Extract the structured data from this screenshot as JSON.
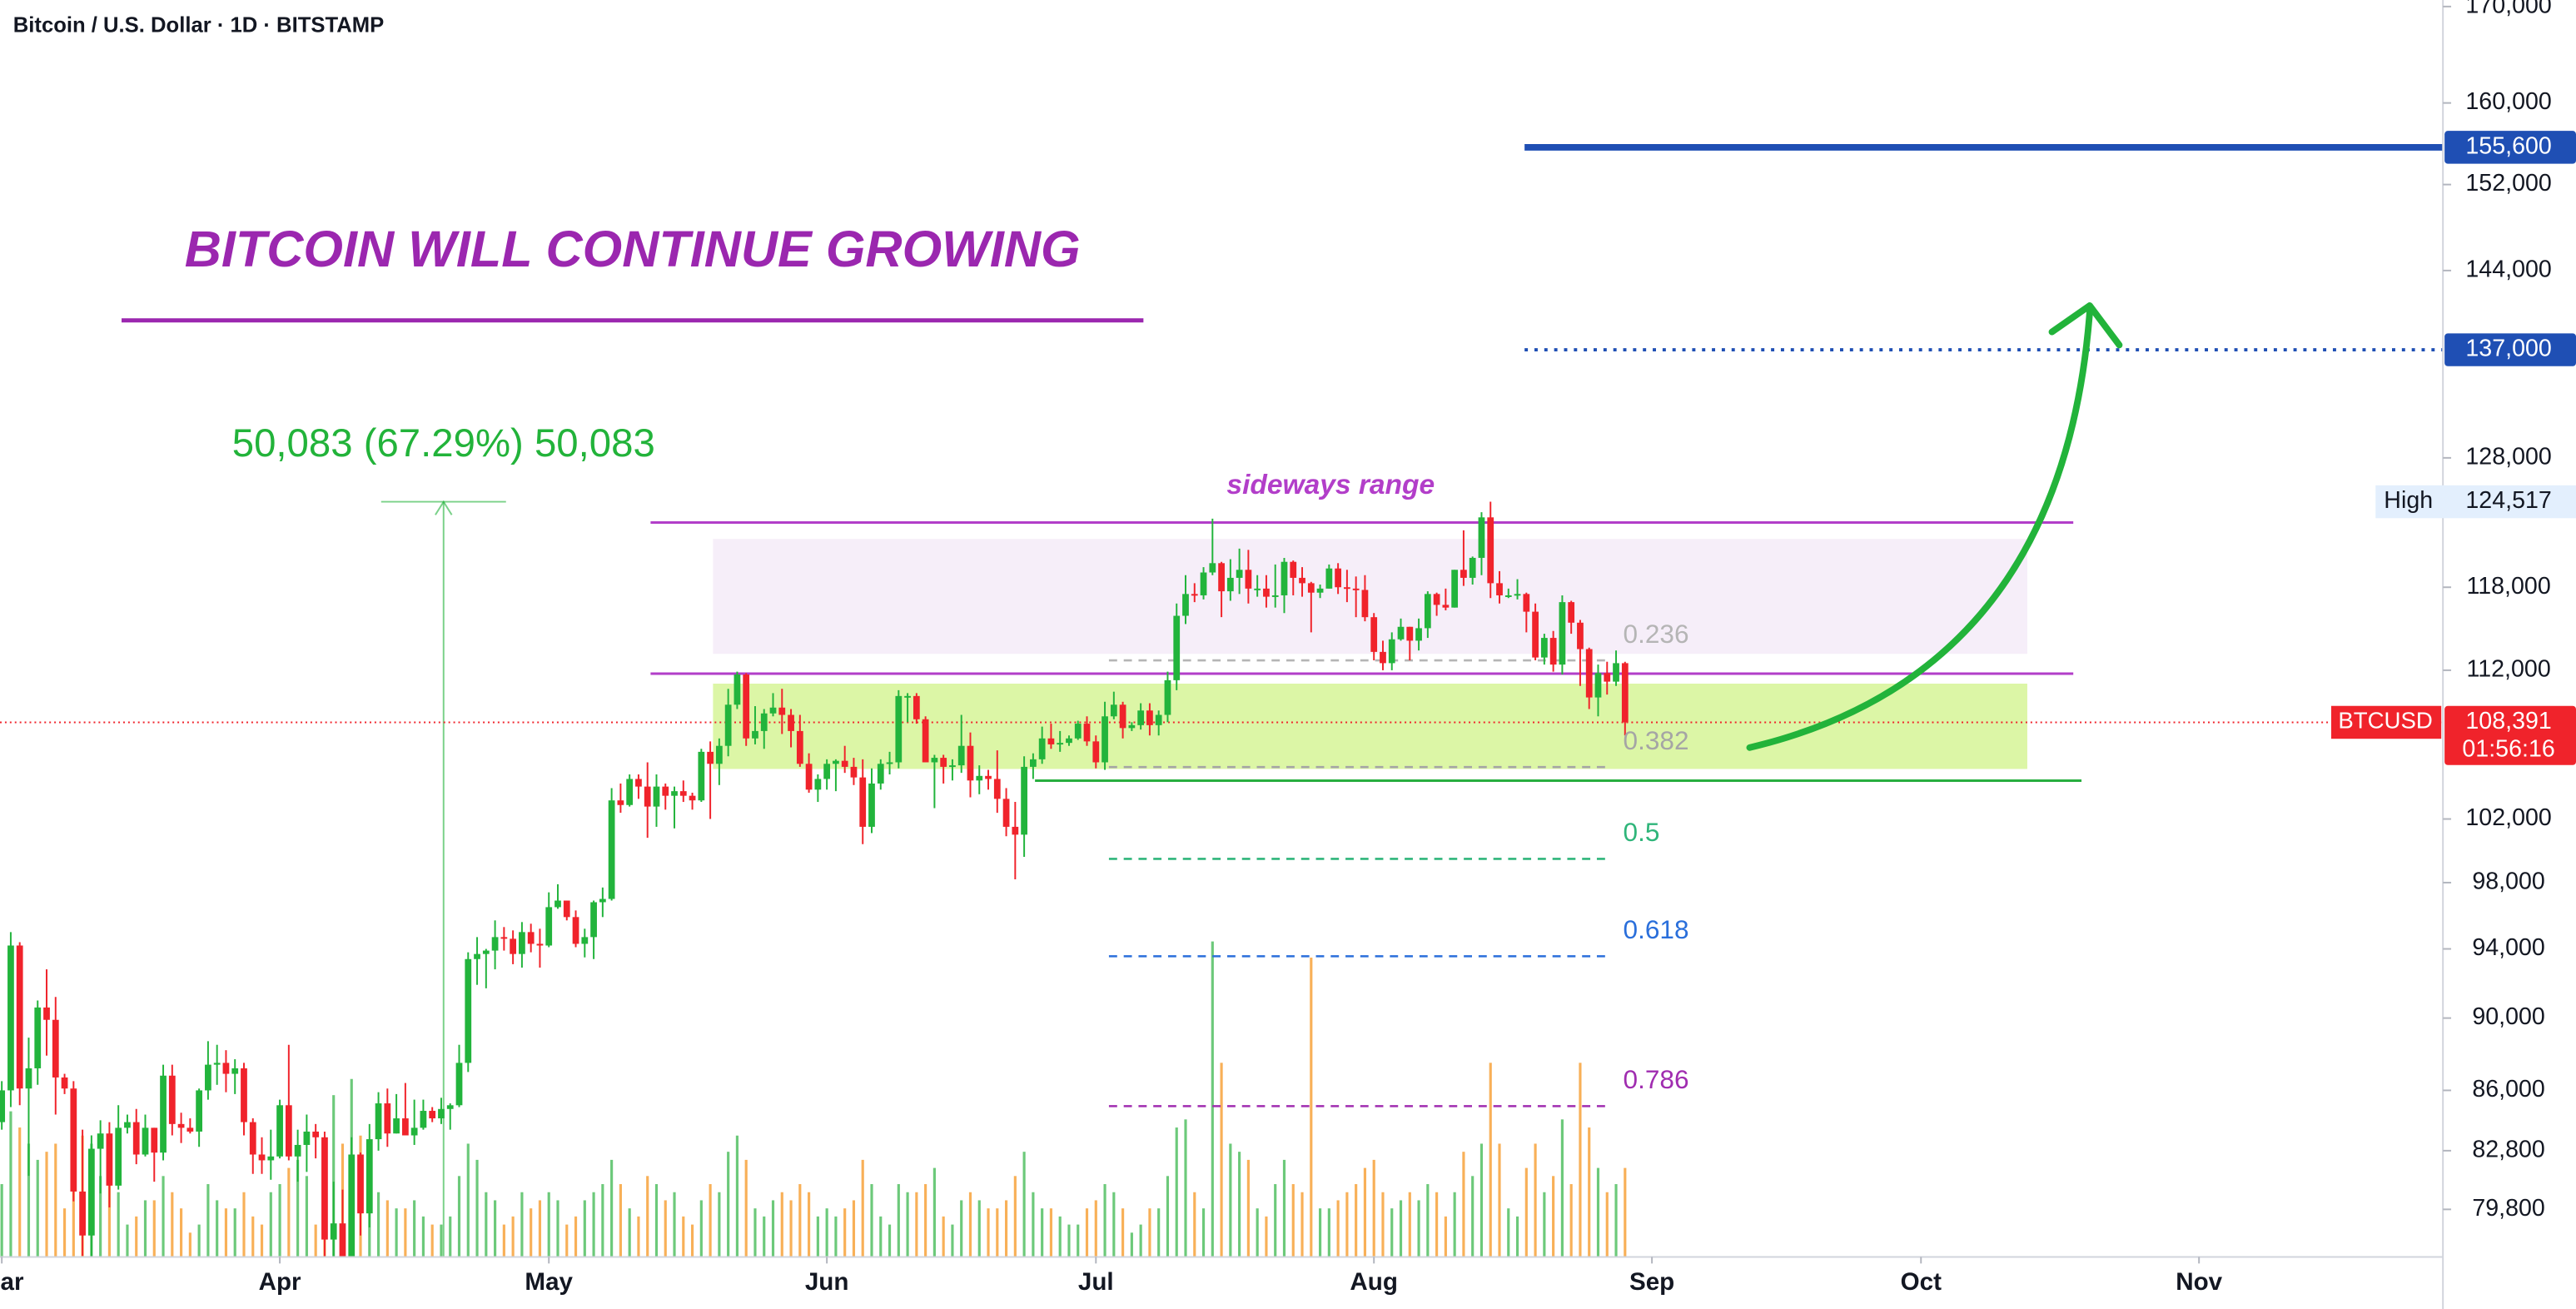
{
  "chart_data": {
    "type": "candlestick",
    "header": "Bitcoin / U.S. Dollar · 1D · BITSTAMP",
    "title": "BITCOIN WILL CONTINUE GROWING",
    "log": true,
    "ylim": [
      77450,
      170700
    ],
    "yticks": [
      {
        "value": 170000,
        "label": "170,000"
      },
      {
        "value": 160000,
        "label": "160,000"
      },
      {
        "value": 152000,
        "label": "152,000"
      },
      {
        "value": 144000,
        "label": "144,000"
      },
      {
        "value": 128000,
        "label": "128,000"
      },
      {
        "value": 118000,
        "label": "118,000"
      },
      {
        "value": 112000,
        "label": "112,000"
      },
      {
        "value": 102000,
        "label": "102,000"
      },
      {
        "value": 98000,
        "label": "98,000"
      },
      {
        "value": 94000,
        "label": "94,000"
      },
      {
        "value": 90000,
        "label": "90,000"
      },
      {
        "value": 86000,
        "label": "86,000"
      },
      {
        "value": 82800,
        "label": "82,800"
      },
      {
        "value": 79800,
        "label": "79,800"
      }
    ],
    "xlim": [
      -0.2,
      272.2
    ],
    "xticks": [
      {
        "value": 0,
        "label": "Mar"
      },
      {
        "value": 31,
        "label": "Apr"
      },
      {
        "value": 61,
        "label": "May"
      },
      {
        "value": 92,
        "label": "Jun"
      },
      {
        "value": 122,
        "label": "Jul"
      },
      {
        "value": 153,
        "label": "Aug"
      },
      {
        "value": 184,
        "label": "Sep"
      },
      {
        "value": 214,
        "label": "Oct"
      },
      {
        "value": 245,
        "label": "Nov"
      }
    ],
    "up_color": "#22b43c",
    "down_color": "#f0232b",
    "volume_up_color": "#6cc97a",
    "volume_down_color": "#f8b058",
    "ohlc": [
      [
        84300,
        86500,
        83900,
        86000
      ],
      [
        86000,
        95000,
        85100,
        94200
      ],
      [
        94200,
        94400,
        85200,
        86100
      ],
      [
        86100,
        88900,
        81500,
        87200
      ],
      [
        87200,
        91000,
        86300,
        90600
      ],
      [
        90600,
        92800,
        87900,
        89900
      ],
      [
        89900,
        91200,
        84700,
        86700
      ],
      [
        86700,
        86900,
        85800,
        86100
      ],
      [
        86100,
        86500,
        80200,
        80700
      ],
      [
        80700,
        83900,
        77500,
        78500
      ],
      [
        78500,
        83600,
        76600,
        82900
      ],
      [
        82900,
        84400,
        80600,
        83700
      ],
      [
        83700,
        84300,
        79900,
        81000
      ],
      [
        81000,
        85200,
        80800,
        84000
      ],
      [
        84000,
        84700,
        83700,
        84300
      ],
      [
        84300,
        85000,
        82100,
        82600
      ],
      [
        82600,
        84700,
        82500,
        84000
      ],
      [
        84000,
        84000,
        81200,
        82700
      ],
      [
        82700,
        87400,
        82300,
        86800
      ],
      [
        86800,
        87400,
        83600,
        84200
      ],
      [
        84200,
        84800,
        83200,
        84000
      ],
      [
        84000,
        84500,
        83700,
        83800
      ],
      [
        83800,
        86100,
        83000,
        86000
      ],
      [
        86000,
        88700,
        85500,
        87400
      ],
      [
        87400,
        88500,
        86300,
        87500
      ],
      [
        87500,
        88200,
        85900,
        86900
      ],
      [
        86900,
        87700,
        85800,
        87200
      ],
      [
        87200,
        87500,
        83600,
        84300
      ],
      [
        84300,
        84500,
        81600,
        82600
      ],
      [
        82600,
        83500,
        81600,
        82300
      ],
      [
        82300,
        83900,
        81300,
        82500
      ],
      [
        82500,
        85500,
        82400,
        85200
      ],
      [
        85200,
        88500,
        82300,
        82500
      ],
      [
        82500,
        83900,
        81200,
        83100
      ],
      [
        83100,
        84700,
        81700,
        83800
      ],
      [
        83800,
        84200,
        82400,
        83500
      ],
      [
        83500,
        83800,
        77200,
        78300
      ],
      [
        78300,
        81200,
        74434,
        79100
      ],
      [
        79100,
        80800,
        76200,
        76300
      ],
      [
        76300,
        83500,
        74600,
        82600
      ],
      [
        82600,
        82700,
        78500,
        79600
      ],
      [
        79600,
        84200,
        78900,
        83400
      ],
      [
        83400,
        85900,
        82800,
        85300
      ],
      [
        85300,
        86100,
        83000,
        83700
      ],
      [
        83700,
        85800,
        83700,
        84500
      ],
      [
        84500,
        86400,
        83600,
        83600
      ],
      [
        83600,
        85500,
        83100,
        84000
      ],
      [
        84000,
        85500,
        83900,
        84900
      ],
      [
        84900,
        85100,
        84300,
        84500
      ],
      [
        84500,
        85600,
        84200,
        85000
      ],
      [
        85000,
        85300,
        83900,
        85200
      ],
      [
        85200,
        88500,
        85100,
        87500
      ],
      [
        87500,
        93800,
        87000,
        93400
      ],
      [
        93400,
        94700,
        91900,
        93700
      ],
      [
        93700,
        94000,
        91700,
        93900
      ],
      [
        93900,
        95700,
        92800,
        94700
      ],
      [
        94700,
        95300,
        93900,
        94600
      ],
      [
        94600,
        95100,
        93100,
        93700
      ],
      [
        93700,
        95600,
        92900,
        95000
      ],
      [
        95000,
        95500,
        93800,
        94300
      ],
      [
        94300,
        95200,
        92900,
        94200
      ],
      [
        94200,
        97400,
        94100,
        96500
      ],
      [
        96500,
        97900,
        96400,
        96900
      ],
      [
        96900,
        96900,
        95700,
        95900
      ],
      [
        95900,
        96300,
        94100,
        94300
      ],
      [
        94300,
        95200,
        93500,
        94700
      ],
      [
        94700,
        96900,
        93400,
        96800
      ],
      [
        96800,
        97700,
        95900,
        97000
      ],
      [
        97000,
        104000,
        96900,
        103200
      ],
      [
        103200,
        104300,
        102400,
        102900
      ],
      [
        102900,
        104900,
        102800,
        104600
      ],
      [
        104600,
        104900,
        103300,
        104100
      ],
      [
        104100,
        105700,
        100800,
        102800
      ],
      [
        102800,
        104900,
        101500,
        104100
      ],
      [
        104100,
        104300,
        102600,
        103500
      ],
      [
        103500,
        104100,
        101400,
        103800
      ],
      [
        103800,
        104500,
        103100,
        103500
      ],
      [
        103500,
        103700,
        102600,
        103200
      ],
      [
        103200,
        106600,
        103100,
        106400
      ],
      [
        106400,
        107100,
        102000,
        105600
      ],
      [
        105600,
        107300,
        104200,
        106800
      ],
      [
        106800,
        110700,
        106100,
        109600
      ],
      [
        109600,
        111900,
        109300,
        111700
      ],
      [
        111700,
        111800,
        106800,
        107300
      ],
      [
        107300,
        109500,
        106900,
        107800
      ],
      [
        107800,
        109300,
        106600,
        109000
      ],
      [
        109000,
        110400,
        108800,
        109400
      ],
      [
        109400,
        110700,
        107600,
        108900
      ],
      [
        108900,
        109300,
        106700,
        107800
      ],
      [
        107800,
        108900,
        105400,
        105600
      ],
      [
        105600,
        106300,
        103700,
        103900
      ],
      [
        103900,
        104900,
        103100,
        104600
      ],
      [
        104600,
        105900,
        103900,
        105600
      ],
      [
        105600,
        105900,
        103800,
        105800
      ],
      [
        105800,
        106800,
        105000,
        105400
      ],
      [
        105400,
        106000,
        104200,
        104700
      ],
      [
        104700,
        105900,
        100400,
        101500
      ],
      [
        101500,
        105300,
        101100,
        104300
      ],
      [
        104300,
        105900,
        103900,
        105600
      ],
      [
        105600,
        106400,
        104900,
        105700
      ],
      [
        105700,
        110600,
        105300,
        110200
      ],
      [
        110200,
        110400,
        108400,
        110200
      ],
      [
        110200,
        110400,
        108300,
        108600
      ],
      [
        108600,
        108800,
        105700,
        105700
      ],
      [
        105700,
        106200,
        102700,
        106000
      ],
      [
        106000,
        106200,
        104300,
        105400
      ],
      [
        105400,
        105900,
        104500,
        105500
      ],
      [
        105500,
        108900,
        105000,
        106800
      ],
      [
        106800,
        107700,
        103400,
        104500
      ],
      [
        104500,
        105500,
        103600,
        104800
      ],
      [
        104800,
        105200,
        103900,
        104600
      ],
      [
        104600,
        106500,
        102400,
        103300
      ],
      [
        103300,
        104000,
        100900,
        101500
      ],
      [
        101500,
        103100,
        98200,
        101000
      ],
      [
        101000,
        106100,
        99600,
        105400
      ],
      [
        105400,
        106300,
        104600,
        105900
      ],
      [
        105900,
        108100,
        105600,
        107300
      ],
      [
        107300,
        108300,
        106600,
        106900
      ],
      [
        106900,
        107800,
        106400,
        107000
      ],
      [
        107000,
        107500,
        106800,
        107300
      ],
      [
        107300,
        108500,
        107200,
        108300
      ],
      [
        108300,
        108800,
        106800,
        107100
      ],
      [
        107100,
        107500,
        105300,
        105700
      ],
      [
        105700,
        109800,
        105200,
        108800
      ],
      [
        108800,
        110500,
        108600,
        109600
      ],
      [
        109600,
        109800,
        107300,
        108000
      ],
      [
        108000,
        108400,
        107800,
        108200
      ],
      [
        108200,
        109700,
        107900,
        109200
      ],
      [
        109200,
        109700,
        107500,
        108200
      ],
      [
        108200,
        109200,
        107500,
        108900
      ],
      [
        108900,
        111900,
        108400,
        111300
      ],
      [
        111300,
        116800,
        110600,
        115900
      ],
      [
        115900,
        118900,
        115300,
        117500
      ],
      [
        117500,
        118300,
        116900,
        117400
      ],
      [
        117400,
        119500,
        117100,
        119100
      ],
      [
        119100,
        123200,
        118900,
        119800
      ],
      [
        119800,
        119900,
        115800,
        117700
      ],
      [
        117700,
        120100,
        117000,
        118700
      ],
      [
        118700,
        120900,
        117500,
        119300
      ],
      [
        119300,
        120800,
        116800,
        117900
      ],
      [
        117900,
        118900,
        117300,
        117900
      ],
      [
        117900,
        118900,
        116500,
        117300
      ],
      [
        117300,
        119700,
        116500,
        117400
      ],
      [
        117400,
        120200,
        116100,
        119900
      ],
      [
        119900,
        120000,
        117400,
        118700
      ],
      [
        118700,
        119500,
        117300,
        118300
      ],
      [
        118300,
        118400,
        114700,
        117600
      ],
      [
        117600,
        118200,
        117200,
        117900
      ],
      [
        117900,
        119700,
        117900,
        119400
      ],
      [
        119400,
        119800,
        117500,
        118000
      ],
      [
        118000,
        119300,
        116900,
        117900
      ],
      [
        117900,
        118800,
        115800,
        117800
      ],
      [
        117800,
        118900,
        115500,
        115800
      ],
      [
        115800,
        116100,
        112700,
        113300
      ],
      [
        113300,
        114100,
        112000,
        112500
      ],
      [
        112500,
        114700,
        112000,
        114200
      ],
      [
        114200,
        115700,
        114100,
        115100
      ],
      [
        115100,
        115100,
        112700,
        114100
      ],
      [
        114100,
        115700,
        113400,
        115000
      ],
      [
        115000,
        117700,
        114300,
        117500
      ],
      [
        117500,
        117600,
        115900,
        116700
      ],
      [
        116700,
        117900,
        116300,
        116500
      ],
      [
        116500,
        119300,
        116500,
        119300
      ],
      [
        119300,
        122300,
        118100,
        118700
      ],
      [
        118700,
        120300,
        118200,
        120200
      ],
      [
        120200,
        123700,
        118900,
        123300
      ],
      [
        123300,
        124517,
        117200,
        118300
      ],
      [
        118300,
        119200,
        116800,
        117400
      ],
      [
        117400,
        117900,
        117200,
        117400
      ],
      [
        117400,
        118600,
        117100,
        117500
      ],
      [
        117500,
        117600,
        114700,
        116200
      ],
      [
        116200,
        116800,
        112700,
        112900
      ],
      [
        112900,
        114600,
        112400,
        114300
      ],
      [
        114300,
        114800,
        111900,
        112400
      ],
      [
        112400,
        117400,
        111700,
        116900
      ],
      [
        116900,
        117000,
        114600,
        115400
      ],
      [
        115400,
        115600,
        110900,
        113500
      ],
      [
        113500,
        113600,
        109300,
        110100
      ],
      [
        110100,
        112400,
        108800,
        111800
      ],
      [
        111800,
        112600,
        110300,
        111200
      ],
      [
        111200,
        113400,
        110900,
        112500
      ],
      [
        112500,
        112600,
        107500,
        108391
      ]
    ],
    "volume": [
      45,
      90,
      80,
      70,
      60,
      65,
      70,
      30,
      55,
      75,
      70,
      50,
      45,
      40,
      20,
      25,
      35,
      35,
      50,
      40,
      30,
      15,
      20,
      45,
      35,
      30,
      30,
      40,
      25,
      20,
      40,
      45,
      55,
      60,
      50,
      20,
      60,
      100,
      70,
      110,
      75,
      60,
      40,
      35,
      30,
      30,
      35,
      25,
      20,
      20,
      25,
      50,
      70,
      60,
      40,
      35,
      20,
      25,
      40,
      30,
      35,
      40,
      35,
      20,
      25,
      35,
      40,
      45,
      60,
      45,
      30,
      25,
      50,
      45,
      35,
      40,
      25,
      20,
      35,
      45,
      40,
      65,
      75,
      60,
      30,
      25,
      35,
      40,
      35,
      45,
      40,
      25,
      30,
      25,
      30,
      35,
      60,
      45,
      25,
      20,
      45,
      40,
      40,
      45,
      55,
      25,
      20,
      35,
      40,
      35,
      30,
      30,
      35,
      50,
      65,
      40,
      30,
      30,
      25,
      20,
      20,
      30,
      35,
      45,
      40,
      30,
      15,
      20,
      30,
      30,
      50,
      80,
      85,
      40,
      30,
      195,
      120,
      70,
      65,
      60,
      30,
      25,
      45,
      60,
      45,
      40,
      185,
      30,
      30,
      35,
      40,
      45,
      55,
      60,
      40,
      30,
      35,
      40,
      35,
      45,
      40,
      25,
      40,
      65,
      50,
      70,
      120,
      70,
      30,
      25,
      55,
      70,
      40,
      50,
      85,
      45,
      120,
      80,
      55,
      40,
      45,
      55
    ],
    "measure": {
      "label": "50,083 (67.29%) 50,083",
      "low": 74434,
      "high": 124517,
      "color": "#22b33a"
    },
    "levels": [
      {
        "value": 155600,
        "label": "155,600",
        "style": "solid",
        "color": "#1f4fb4"
      },
      {
        "value": 137000,
        "label": "137,000",
        "style": "dotted",
        "color": "#1f4fb4"
      }
    ],
    "sideways_range": {
      "label": "sideways range",
      "top": 122900,
      "bottom": 111760,
      "color": "#b23ec9"
    },
    "zones": [
      {
        "top": 121640,
        "bottom": 113160,
        "color": "#f6eef9"
      },
      {
        "top": 111060,
        "bottom": 105260,
        "color": "#dcf6a6"
      }
    ],
    "support": {
      "value": 104490,
      "color": "#27ae3f"
    },
    "fib": [
      {
        "label": "0.236",
        "value": 112697,
        "color": "#b5b5b5"
      },
      {
        "label": "0.382",
        "value": 105385,
        "color": "#a5a5a5"
      },
      {
        "label": "0.5",
        "value": 99475,
        "color": "#2fb57a"
      },
      {
        "label": "0.618",
        "value": 93566,
        "color": "#2a6fdb"
      },
      {
        "label": "0.786",
        "value": 85152,
        "color": "#a02db0"
      }
    ],
    "high": {
      "name": "High",
      "value": 124517,
      "label": "124,517"
    },
    "last": {
      "symbol": "BTCUSD",
      "value": 108391,
      "label": "108,391",
      "countdown": "01:56:16",
      "color": "#f0232b"
    }
  }
}
